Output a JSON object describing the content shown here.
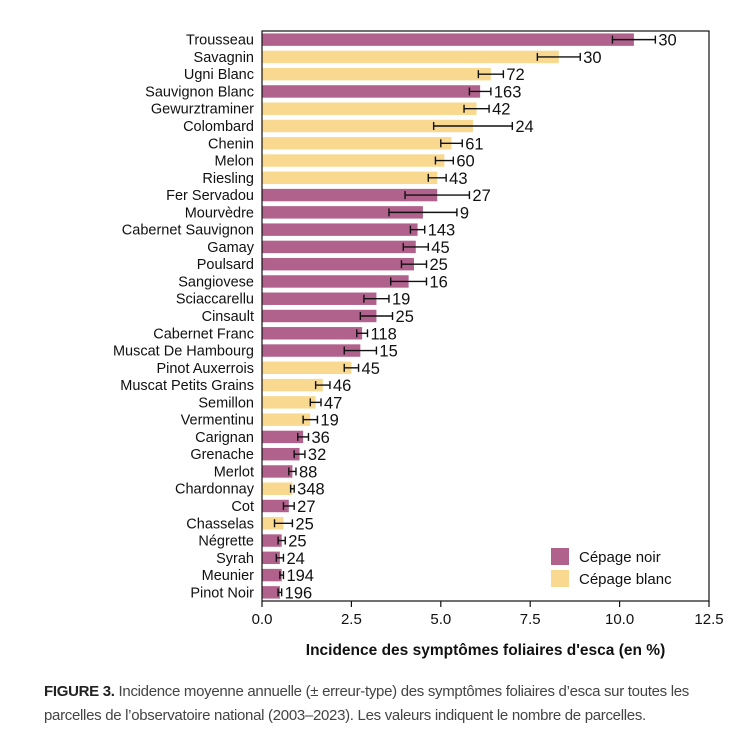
{
  "chart_data": {
    "type": "bar",
    "orientation": "horizontal",
    "xlabel": "Incidence des symptômes foliaires d'esca (en %)",
    "xlim": [
      0,
      12.5
    ],
    "xticks": [
      "0.0",
      "2.5",
      "5.0",
      "7.5",
      "10.0",
      "12.5"
    ],
    "xtick_values": [
      0,
      2.5,
      5,
      7.5,
      10,
      12.5
    ],
    "grid": false,
    "legend_position": "bottom-right",
    "legend": [
      {
        "label": "Cépage noir",
        "color": "#b0628c",
        "key": "noir"
      },
      {
        "label": "Cépage blanc",
        "color": "#f9d98f",
        "key": "blanc"
      }
    ],
    "series": [
      {
        "category": "Trousseau",
        "value": 10.4,
        "error": 0.6,
        "type": "noir",
        "n": "30"
      },
      {
        "category": "Savagnin",
        "value": 8.3,
        "error": 0.6,
        "type": "blanc",
        "n": "30"
      },
      {
        "category": "Ugni Blanc",
        "value": 6.4,
        "error": 0.35,
        "type": "blanc",
        "n": "72"
      },
      {
        "category": "Sauvignon Blanc",
        "value": 6.1,
        "error": 0.3,
        "type": "noir",
        "n": "163"
      },
      {
        "category": "Gewurztraminer",
        "value": 6.0,
        "error": 0.35,
        "type": "blanc",
        "n": "42"
      },
      {
        "category": "Colombard",
        "value": 5.9,
        "error": 1.1,
        "type": "blanc",
        "n": "24"
      },
      {
        "category": "Chenin",
        "value": 5.3,
        "error": 0.3,
        "type": "blanc",
        "n": "61"
      },
      {
        "category": "Melon",
        "value": 5.1,
        "error": 0.25,
        "type": "blanc",
        "n": "60"
      },
      {
        "category": "Riesling",
        "value": 4.9,
        "error": 0.25,
        "type": "blanc",
        "n": "43"
      },
      {
        "category": "Fer Servadou",
        "value": 4.9,
        "error": 0.9,
        "type": "noir",
        "n": "27"
      },
      {
        "category": "Mourvèdre",
        "value": 4.5,
        "error": 0.95,
        "type": "noir",
        "n": "9"
      },
      {
        "category": "Cabernet Sauvignon",
        "value": 4.35,
        "error": 0.2,
        "type": "noir",
        "n": "143"
      },
      {
        "category": "Gamay",
        "value": 4.3,
        "error": 0.35,
        "type": "noir",
        "n": "45"
      },
      {
        "category": "Poulsard",
        "value": 4.25,
        "error": 0.35,
        "type": "noir",
        "n": "25"
      },
      {
        "category": "Sangiovese",
        "value": 4.1,
        "error": 0.5,
        "type": "noir",
        "n": "16"
      },
      {
        "category": "Sciaccarellu",
        "value": 3.2,
        "error": 0.35,
        "type": "noir",
        "n": "19"
      },
      {
        "category": "Cinsault",
        "value": 3.2,
        "error": 0.45,
        "type": "noir",
        "n": "25"
      },
      {
        "category": "Cabernet Franc",
        "value": 2.8,
        "error": 0.15,
        "type": "noir",
        "n": "118"
      },
      {
        "category": "Muscat De Hambourg",
        "value": 2.75,
        "error": 0.45,
        "type": "noir",
        "n": "15"
      },
      {
        "category": "Pinot Auxerrois",
        "value": 2.5,
        "error": 0.2,
        "type": "blanc",
        "n": "45"
      },
      {
        "category": "Muscat Petits Grains",
        "value": 1.7,
        "error": 0.2,
        "type": "blanc",
        "n": "46"
      },
      {
        "category": "Semillon",
        "value": 1.5,
        "error": 0.15,
        "type": "blanc",
        "n": "47"
      },
      {
        "category": "Vermentinu",
        "value": 1.35,
        "error": 0.2,
        "type": "blanc",
        "n": "19"
      },
      {
        "category": "Carignan",
        "value": 1.15,
        "error": 0.15,
        "type": "noir",
        "n": "36"
      },
      {
        "category": "Grenache",
        "value": 1.05,
        "error": 0.15,
        "type": "noir",
        "n": "32"
      },
      {
        "category": "Merlot",
        "value": 0.85,
        "error": 0.1,
        "type": "noir",
        "n": "88"
      },
      {
        "category": "Chardonnay",
        "value": 0.85,
        "error": 0.05,
        "type": "blanc",
        "n": "348"
      },
      {
        "category": "Cot",
        "value": 0.75,
        "error": 0.15,
        "type": "noir",
        "n": "27"
      },
      {
        "category": "Chasselas",
        "value": 0.6,
        "error": 0.25,
        "type": "blanc",
        "n": "25"
      },
      {
        "category": "Négrette",
        "value": 0.55,
        "error": 0.1,
        "type": "noir",
        "n": "25"
      },
      {
        "category": "Syrah",
        "value": 0.5,
        "error": 0.1,
        "type": "noir",
        "n": "24"
      },
      {
        "category": "Meunier",
        "value": 0.55,
        "error": 0.05,
        "type": "noir",
        "n": "194"
      },
      {
        "category": "Pinot Noir",
        "value": 0.5,
        "error": 0.05,
        "type": "noir",
        "n": "196"
      }
    ]
  },
  "caption": {
    "head": "FIGURE 3.",
    "body": "Incidence moyenne annuelle (± erreur-type) des symptômes foliaires d’esca sur toutes les parcelles de l’observatoire national (2003–2023). Les valeurs indiquent le nombre de parcelles."
  }
}
